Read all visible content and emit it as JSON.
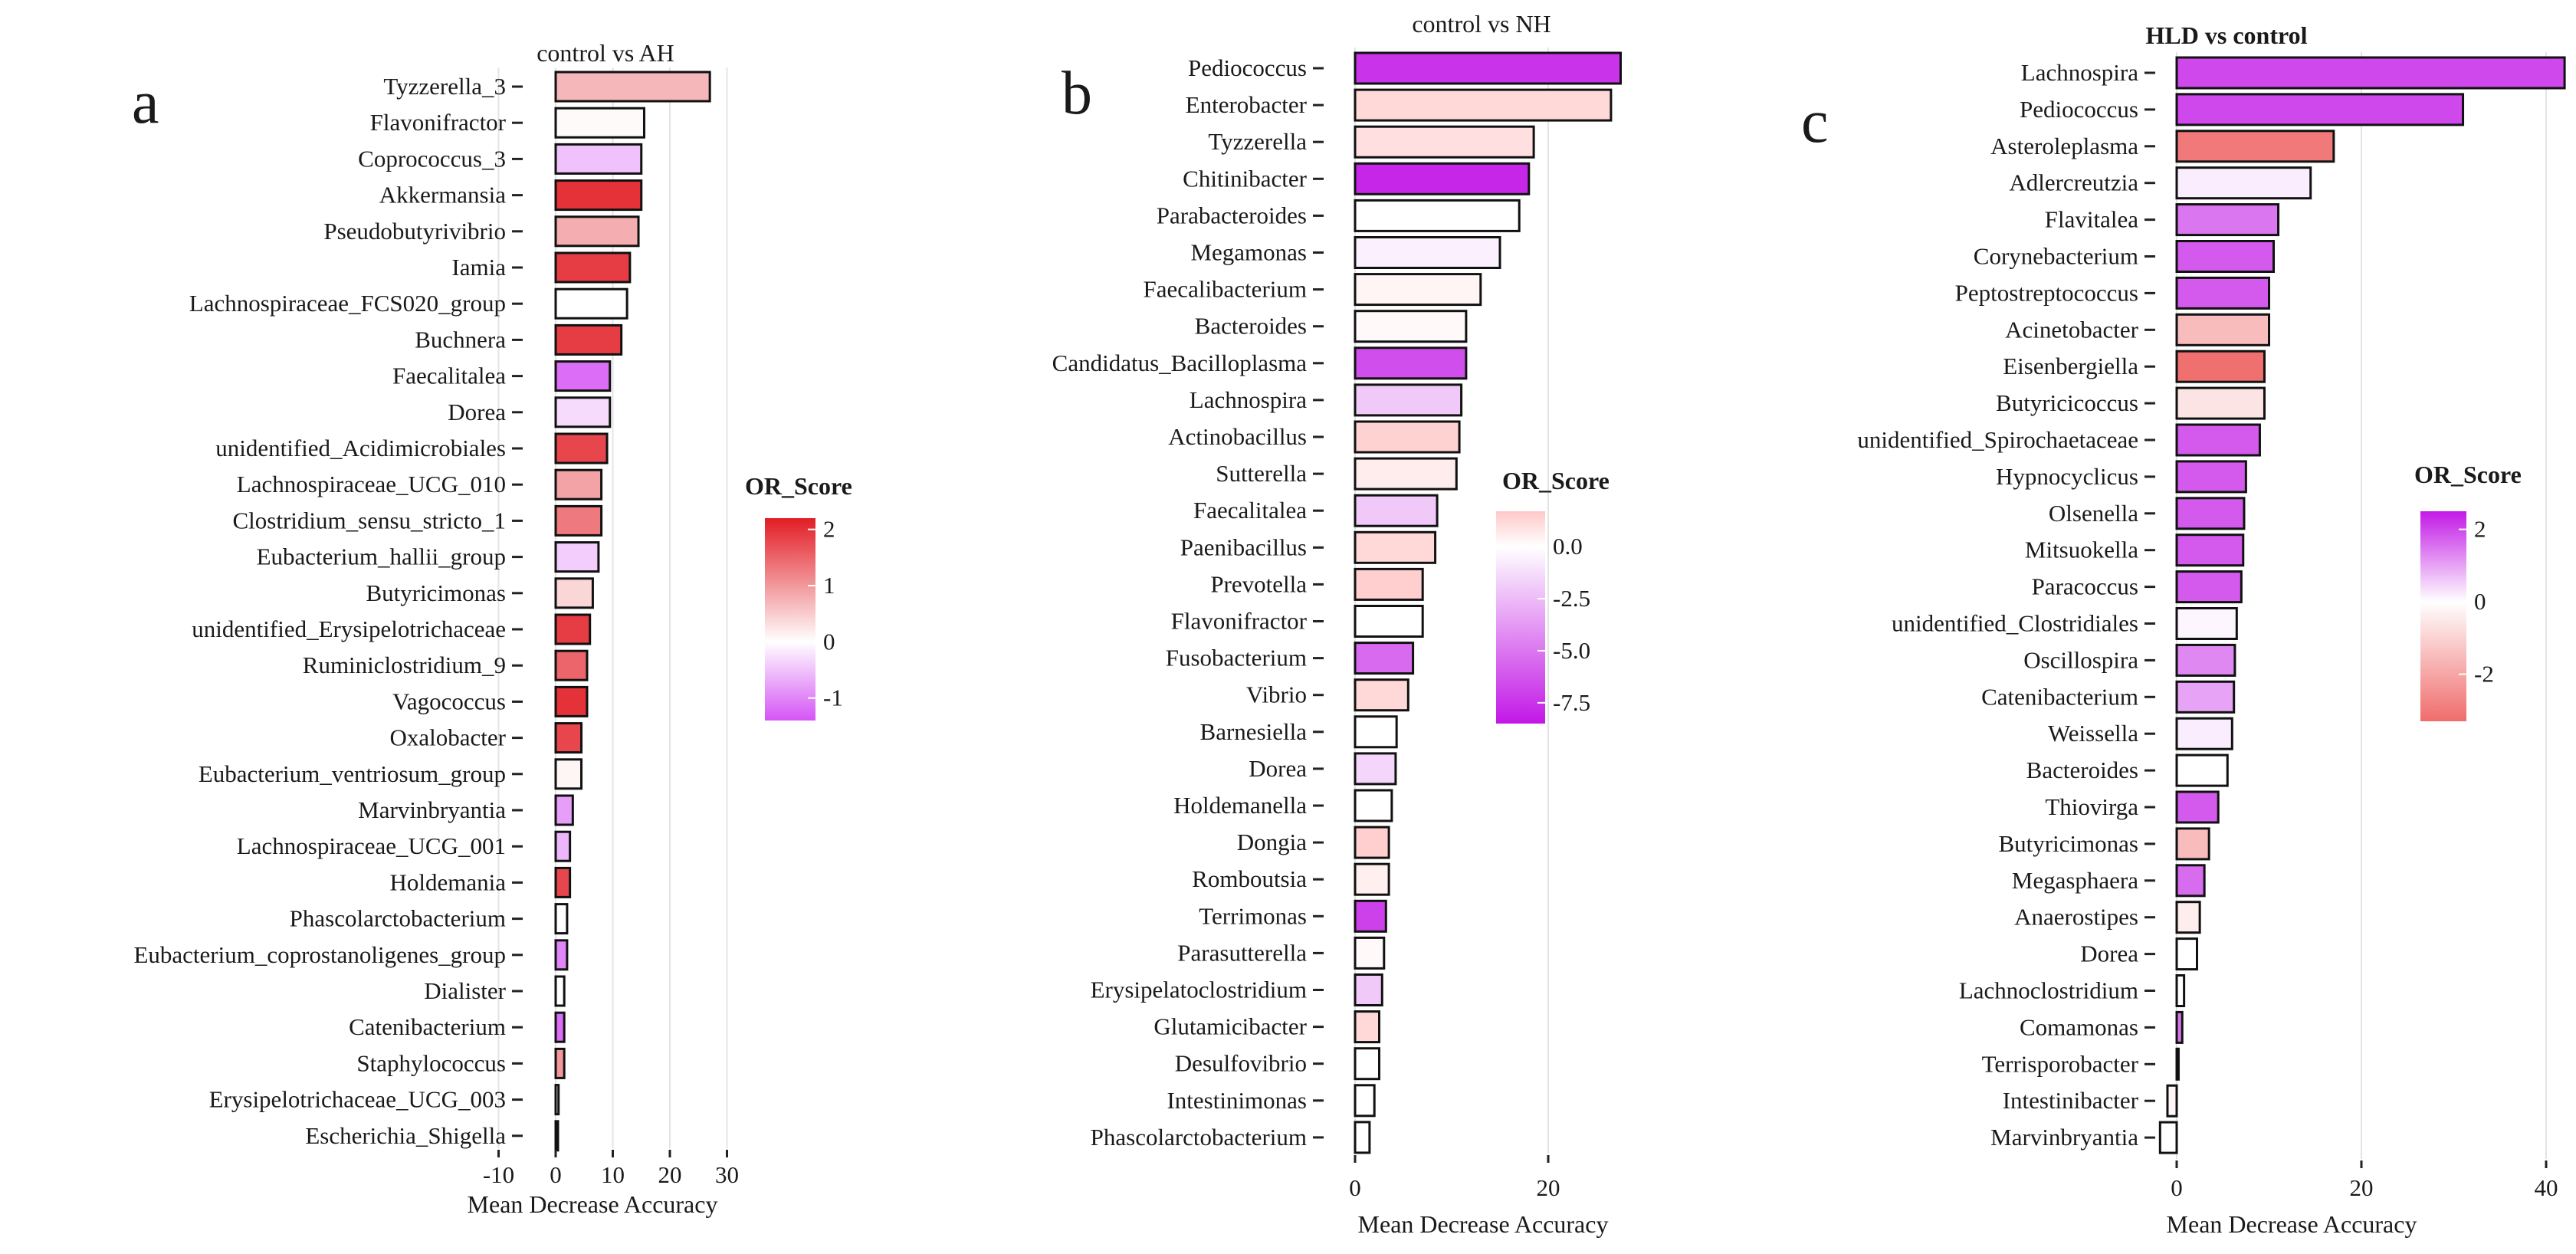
{
  "chart_data": [
    {
      "type": "bar",
      "orientation": "horizontal",
      "panel_letter": "a",
      "title": "control vs AH",
      "xlabel": "Mean Decrease Accuracy",
      "xlim": [
        -10,
        32
      ],
      "xticks": [
        -10,
        0,
        10,
        20,
        30
      ],
      "grid": true,
      "legend": {
        "title": "OR_Score",
        "placement": "right",
        "range": [
          -1.4,
          2.2
        ],
        "ticks": [
          -1,
          0,
          1,
          2
        ],
        "colors": [
          "#d555f5",
          "#ffffff",
          "#e21d25"
        ]
      },
      "categories": [
        "Tyzzerella_3",
        "Flavonifractor",
        "Coprococcus_3",
        "Akkermansia",
        "Pseudobutyrivibrio",
        "Iamia",
        "Lachnospiraceae_FCS020_group",
        "Buchnera",
        "Faecalitalea",
        "Dorea",
        "unidentified_Acidimicrobiales",
        "Lachnospiraceae_UCG_010",
        "Clostridium_sensu_stricto_1",
        "Eubacterium_hallii_group",
        "Butyricimonas",
        "unidentified_Erysipelotrichaceae",
        "Ruminiclostridium_9",
        "Vagococcus",
        "Oxalobacter",
        "Eubacterium_ventriosum_group",
        "Marvinbryantia",
        "Lachnospiraceae_UCG_001",
        "Holdemania",
        "Phascolarctobacterium",
        "Eubacterium_coprostanoligenes_group",
        "Dialister",
        "Catenibacterium",
        "Staphylococcus",
        "Erysipelotrichaceae_UCG_003",
        "Escherichia_Shigella"
      ],
      "values": [
        27,
        15.5,
        15,
        15,
        14.5,
        13,
        12.5,
        11.5,
        9.5,
        9.5,
        9,
        8,
        8,
        7.5,
        6.5,
        6,
        5.5,
        5.5,
        4.5,
        4.5,
        3,
        2.5,
        2.5,
        2,
        2,
        1.5,
        1.5,
        1.5,
        0.5,
        0.4
      ],
      "or_score": [
        0.7,
        0.05,
        -0.5,
        2.0,
        0.8,
        1.9,
        0.0,
        1.9,
        -1.2,
        -0.3,
        1.8,
        0.9,
        1.3,
        -0.4,
        0.4,
        1.9,
        1.5,
        2.0,
        1.8,
        0.1,
        -0.8,
        -0.6,
        1.8,
        0.0,
        -1.0,
        0.0,
        -1.2,
        1.0,
        0.0,
        0.0
      ]
    },
    {
      "type": "bar",
      "orientation": "horizontal",
      "panel_letter": "b",
      "title": "control vs NH",
      "xlabel": "Mean Decrease Accuracy",
      "xlim": [
        -3.5,
        30
      ],
      "xticks": [
        0,
        20
      ],
      "grid": true,
      "legend": {
        "title": "OR_Score",
        "placement": "right",
        "range": [
          -8.5,
          1.7
        ],
        "ticks": [
          0.0,
          -2.5,
          -5.0,
          -7.5
        ],
        "colors": [
          "#ffc8c8",
          "#ffffff",
          "#c218e6"
        ]
      },
      "categories": [
        "Pediococcus",
        "Enterobacter",
        "Tyzzerella",
        "Chitinibacter",
        "Parabacteroides",
        "Megamonas",
        "Faecalibacterium",
        "Bacteroides",
        "Candidatus_Bacilloplasma",
        "Lachnospira",
        "Actinobacillus",
        "Sutterella",
        "Faecalitalea",
        "Paenibacillus",
        "Prevotella",
        "Flavonifractor",
        "Fusobacterium",
        "Vibrio",
        "Barnesiella",
        "Dorea",
        "Holdemanella",
        "Dongia",
        "Romboutsia",
        "Terrimonas",
        "Parasutterella",
        "Erysipelatoclostridium",
        "Glutamicibacter",
        "Desulfovibrio",
        "Intestinimonas",
        "Phascolarctobacterium"
      ],
      "values": [
        27.5,
        26.5,
        18.5,
        18,
        17,
        15,
        13,
        11.5,
        11.5,
        11,
        10.8,
        10.5,
        8.5,
        8.3,
        7,
        7,
        6,
        5.5,
        4.3,
        4.2,
        3.8,
        3.5,
        3.5,
        3.2,
        3,
        2.8,
        2.5,
        2.5,
        2,
        1.5
      ],
      "or_score": [
        -7.5,
        1.2,
        1.0,
        -8.0,
        0.0,
        -0.5,
        0.3,
        0.2,
        -6.5,
        -2.0,
        1.4,
        0.6,
        -2.0,
        1.2,
        1.5,
        0.0,
        -5.5,
        1.2,
        0.0,
        -1.5,
        0.0,
        1.5,
        0.5,
        -7.0,
        0.2,
        -2.0,
        1.2,
        0.0,
        0.0,
        0.0
      ]
    },
    {
      "type": "bar",
      "orientation": "horizontal",
      "panel_letter": "c",
      "title": "HLD vs control",
      "xlabel": "Mean Decrease Accuracy",
      "xlim": [
        -2.5,
        43
      ],
      "xticks": [
        0,
        20,
        40
      ],
      "grid": true,
      "legend": {
        "title": "OR_Score",
        "placement": "right",
        "range": [
          -3.3,
          2.5
        ],
        "ticks": [
          2,
          0,
          -2
        ],
        "colors": [
          "#f06c6c",
          "#ffffff",
          "#c21ae6"
        ]
      },
      "categories": [
        "Lachnospira",
        "Pediococcus",
        "Asteroleplasma",
        "Adlercreutzia",
        "Flavitalea",
        "Corynebacterium",
        "Peptostreptococcus",
        "Acinetobacter",
        "Eisenbergiella",
        "Butyricicoccus",
        "unidentified_Spirochaetaceae",
        "Hypnocyclicus",
        "Olsenella",
        "Mitsuokella",
        "Paracoccus",
        "unidentified_Clostridiales",
        "Oscillospira",
        "Catenibacterium",
        "Weissella",
        "Bacteroides",
        "Thiovirga",
        "Butyricimonas",
        "Megasphaera",
        "Anaerostipes",
        "Dorea",
        "Lachnoclostridium",
        "Comamonas",
        "Terrisporobacter",
        "Intestinibacter",
        "Marvinbryantia"
      ],
      "values": [
        42,
        31,
        17,
        14.5,
        11,
        10.5,
        10,
        10,
        9.5,
        9.5,
        9,
        7.5,
        7.3,
        7.2,
        7,
        6.5,
        6.3,
        6.2,
        6,
        5.5,
        4.5,
        3.5,
        3,
        2.5,
        2.2,
        0.8,
        0.6,
        0.2,
        -1,
        -1.8
      ],
      "or_score": [
        2.0,
        2.0,
        -3.0,
        0.2,
        1.5,
        1.8,
        1.8,
        -1.5,
        -3.2,
        -0.6,
        1.8,
        1.8,
        1.8,
        1.8,
        1.8,
        0.1,
        1.3,
        1.0,
        0.2,
        0.0,
        1.8,
        -1.5,
        1.6,
        -0.4,
        0.0,
        0.0,
        1.5,
        0.0,
        -0.2,
        0.0
      ]
    }
  ]
}
